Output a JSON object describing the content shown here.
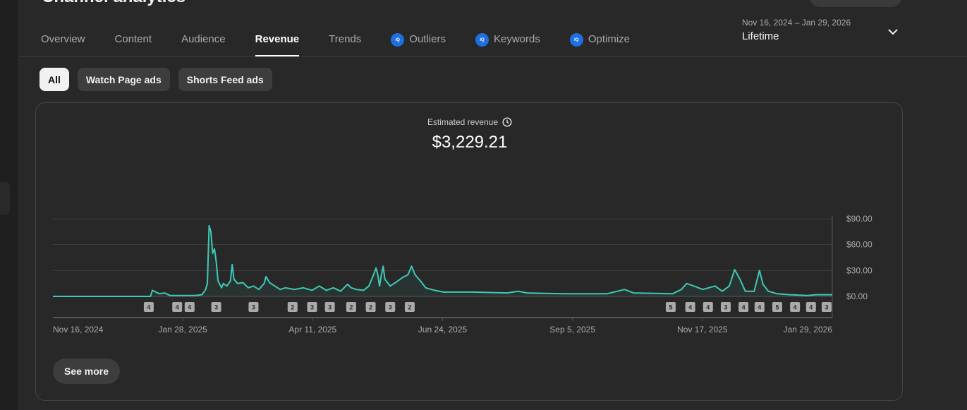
{
  "page": {
    "title": "Channel analytics"
  },
  "tabs": [
    {
      "label": "Overview",
      "active": false,
      "iq": false
    },
    {
      "label": "Content",
      "active": false,
      "iq": false
    },
    {
      "label": "Audience",
      "active": false,
      "iq": false
    },
    {
      "label": "Revenue",
      "active": true,
      "iq": false
    },
    {
      "label": "Trends",
      "active": false,
      "iq": false
    },
    {
      "label": "Outliers",
      "active": false,
      "iq": true
    },
    {
      "label": "Keywords",
      "active": false,
      "iq": true
    },
    {
      "label": "Optimize",
      "active": false,
      "iq": true
    }
  ],
  "iq_badge": "IQ",
  "date_range": {
    "range": "Nov 16, 2024 – Jan 29, 2026",
    "period": "Lifetime"
  },
  "chips": [
    {
      "label": "All",
      "active": true
    },
    {
      "label": "Watch Page ads",
      "active": false
    },
    {
      "label": "Shorts Feed ads",
      "active": false
    }
  ],
  "metric": {
    "label": "Estimated revenue",
    "value": "$3,229.21"
  },
  "see_more_label": "See more",
  "colors": {
    "line": "#3ec9b7",
    "accent": "#1f6fe0",
    "marker": "#aaaaaa"
  },
  "chart_data": {
    "type": "area",
    "x_start": "2024-11-16",
    "x_end": "2026-01-29",
    "y_ticks": [
      "$0.00",
      "$30.00",
      "$60.00",
      "$90.00"
    ],
    "ylim": [
      0,
      90
    ],
    "x_ticks": [
      "Nov 16, 2024",
      "Jan 28, 2025",
      "Apr 11, 2025",
      "Jun 24, 2025",
      "Sep 5, 2025",
      "Nov 17, 2025",
      "Jan 29, 2026"
    ],
    "grid": true,
    "series": [
      {
        "points": [
          [
            "2024-11-16",
            0
          ],
          [
            "2025-01-10",
            0
          ],
          [
            "2025-01-11",
            7
          ],
          [
            "2025-01-13",
            5
          ],
          [
            "2025-01-15",
            3
          ],
          [
            "2025-01-18",
            4
          ],
          [
            "2025-01-21",
            1
          ],
          [
            "2025-01-28",
            1
          ],
          [
            "2025-02-04",
            1
          ],
          [
            "2025-02-08",
            2
          ],
          [
            "2025-02-10",
            8
          ],
          [
            "2025-02-11",
            15
          ],
          [
            "2025-02-12",
            82
          ],
          [
            "2025-02-13",
            75
          ],
          [
            "2025-02-14",
            50
          ],
          [
            "2025-02-15",
            55
          ],
          [
            "2025-02-16",
            40
          ],
          [
            "2025-02-17",
            18
          ],
          [
            "2025-02-19",
            10
          ],
          [
            "2025-02-20",
            15
          ],
          [
            "2025-02-22",
            12
          ],
          [
            "2025-02-24",
            18
          ],
          [
            "2025-02-25",
            37
          ],
          [
            "2025-02-26",
            20
          ],
          [
            "2025-02-28",
            15
          ],
          [
            "2025-03-03",
            16
          ],
          [
            "2025-03-06",
            10
          ],
          [
            "2025-03-09",
            12
          ],
          [
            "2025-03-12",
            8
          ],
          [
            "2025-03-15",
            15
          ],
          [
            "2025-03-16",
            23
          ],
          [
            "2025-03-18",
            16
          ],
          [
            "2025-03-21",
            12
          ],
          [
            "2025-03-24",
            8
          ],
          [
            "2025-03-27",
            10
          ],
          [
            "2025-04-01",
            8
          ],
          [
            "2025-04-06",
            10
          ],
          [
            "2025-04-11",
            7
          ],
          [
            "2025-04-15",
            12
          ],
          [
            "2025-04-19",
            7
          ],
          [
            "2025-04-23",
            10
          ],
          [
            "2025-04-27",
            6
          ],
          [
            "2025-05-01",
            14
          ],
          [
            "2025-05-03",
            10
          ],
          [
            "2025-05-06",
            8
          ],
          [
            "2025-05-10",
            7
          ],
          [
            "2025-05-13",
            12
          ],
          [
            "2025-05-16",
            27
          ],
          [
            "2025-05-17",
            33
          ],
          [
            "2025-05-18",
            25
          ],
          [
            "2025-05-19",
            12
          ],
          [
            "2025-05-20",
            25
          ],
          [
            "2025-05-21",
            35
          ],
          [
            "2025-05-22",
            20
          ],
          [
            "2025-05-25",
            12
          ],
          [
            "2025-05-28",
            16
          ],
          [
            "2025-06-01",
            22
          ],
          [
            "2025-06-04",
            25
          ],
          [
            "2025-06-06",
            35
          ],
          [
            "2025-06-08",
            25
          ],
          [
            "2025-06-11",
            18
          ],
          [
            "2025-06-14",
            10
          ],
          [
            "2025-06-19",
            7
          ],
          [
            "2025-06-24",
            5
          ],
          [
            "2025-07-10",
            5
          ],
          [
            "2025-07-30",
            4
          ],
          [
            "2025-08-05",
            6
          ],
          [
            "2025-08-10",
            4
          ],
          [
            "2025-08-31",
            3
          ],
          [
            "2025-09-24",
            3
          ],
          [
            "2025-10-04",
            8
          ],
          [
            "2025-10-09",
            4
          ],
          [
            "2025-10-31",
            3
          ],
          [
            "2025-11-05",
            8
          ],
          [
            "2025-11-08",
            15
          ],
          [
            "2025-11-12",
            12
          ],
          [
            "2025-11-17",
            8
          ],
          [
            "2025-11-24",
            12
          ],
          [
            "2025-11-28",
            6
          ],
          [
            "2025-12-02",
            12
          ],
          [
            "2025-12-05",
            31
          ],
          [
            "2025-12-08",
            20
          ],
          [
            "2025-12-11",
            6
          ],
          [
            "2025-12-16",
            6
          ],
          [
            "2025-12-19",
            30
          ],
          [
            "2025-12-21",
            14
          ],
          [
            "2025-12-24",
            6
          ],
          [
            "2025-12-29",
            3
          ],
          [
            "2026-01-05",
            2
          ],
          [
            "2026-01-15",
            1
          ],
          [
            "2026-01-20",
            2
          ],
          [
            "2026-01-29",
            2
          ]
        ]
      }
    ],
    "markers": [
      {
        "date": "2025-01-09",
        "label": "4"
      },
      {
        "date": "2025-01-25",
        "label": "4"
      },
      {
        "date": "2025-02-01",
        "label": "4"
      },
      {
        "date": "2025-02-16",
        "label": "3"
      },
      {
        "date": "2025-03-09",
        "label": "3"
      },
      {
        "date": "2025-03-31",
        "label": "2"
      },
      {
        "date": "2025-04-11",
        "label": "3"
      },
      {
        "date": "2025-04-21",
        "label": "3"
      },
      {
        "date": "2025-05-03",
        "label": "2"
      },
      {
        "date": "2025-05-14",
        "label": "2"
      },
      {
        "date": "2025-05-25",
        "label": "3"
      },
      {
        "date": "2025-06-05",
        "label": "2"
      },
      {
        "date": "2025-10-30",
        "label": "5"
      },
      {
        "date": "2025-11-10",
        "label": "4"
      },
      {
        "date": "2025-11-20",
        "label": "4"
      },
      {
        "date": "2025-11-30",
        "label": "3"
      },
      {
        "date": "2025-12-10",
        "label": "4"
      },
      {
        "date": "2025-12-19",
        "label": "4"
      },
      {
        "date": "2025-12-29",
        "label": "5"
      },
      {
        "date": "2026-01-08",
        "label": "4"
      },
      {
        "date": "2026-01-17",
        "label": "4"
      },
      {
        "date": "2026-01-29",
        "label": "3"
      }
    ]
  }
}
